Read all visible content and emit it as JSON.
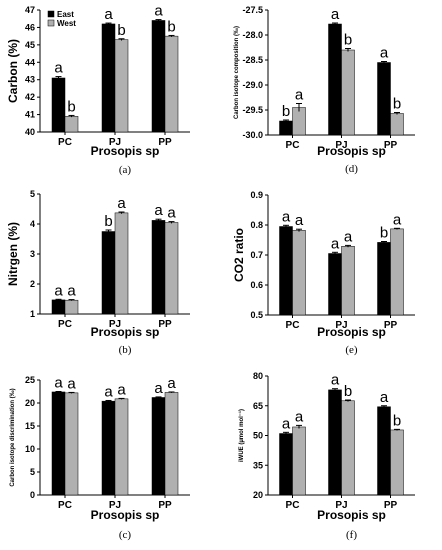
{
  "figure": {
    "legend": [
      "East",
      "West"
    ],
    "colors": {
      "East": "#000000",
      "West": "#b0b0b0"
    }
  },
  "chart_data": [
    {
      "type": "bar",
      "panel": "(a)",
      "ylabel": "Carbon (%)",
      "xlabel": "Prosopis sp",
      "categories": [
        "PC",
        "PJ",
        "PP"
      ],
      "series": [
        {
          "name": "East",
          "values": [
            43.1,
            46.2,
            46.4
          ],
          "errors": [
            0.08,
            0.05,
            0.05
          ],
          "letters": [
            "a",
            "a",
            "a"
          ]
        },
        {
          "name": "West",
          "values": [
            40.9,
            45.3,
            45.5
          ],
          "errors": [
            0.05,
            0.05,
            0.04
          ],
          "letters": [
            "b",
            "b",
            "b"
          ]
        }
      ],
      "ylim": [
        40,
        47
      ],
      "yticks": [
        40,
        41,
        42,
        43,
        44,
        45,
        46,
        47
      ],
      "legend_position": "top-left"
    },
    {
      "type": "bar",
      "panel": "(b)",
      "ylabel": "Nitrgen (%)",
      "xlabel": "Prosopis sp",
      "categories": [
        "PC",
        "PJ",
        "PP"
      ],
      "series": [
        {
          "name": "East",
          "values": [
            1.47,
            3.75,
            4.12
          ],
          "errors": [
            0.02,
            0.05,
            0.04
          ],
          "letters": [
            "a",
            "b",
            "a"
          ]
        },
        {
          "name": "West",
          "values": [
            1.46,
            4.37,
            4.05
          ],
          "errors": [
            0.02,
            0.03,
            0.03
          ],
          "letters": [
            "a",
            "a",
            "a"
          ]
        }
      ],
      "ylim": [
        1,
        5
      ],
      "yticks": [
        1,
        2,
        3,
        4,
        5
      ]
    },
    {
      "type": "bar",
      "panel": "(c)",
      "ylabel": "Carbon isotope discrimination (‰)",
      "xlabel": "Prosopis sp",
      "categories": [
        "PC",
        "PJ",
        "PP"
      ],
      "series": [
        {
          "name": "East",
          "values": [
            22.4,
            20.4,
            21.2
          ],
          "errors": [
            0.1,
            0.15,
            0.12
          ],
          "letters": [
            "a",
            "a",
            "a"
          ]
        },
        {
          "name": "West",
          "values": [
            22.2,
            20.9,
            22.3
          ],
          "errors": [
            0.1,
            0.1,
            0.1
          ],
          "letters": [
            "a",
            "a",
            "a"
          ]
        }
      ],
      "ylim": [
        0,
        25
      ],
      "yticks": [
        0,
        5,
        10,
        15,
        20,
        25
      ]
    },
    {
      "type": "bar",
      "panel": "(d)",
      "ylabel": "Carbon isotope composition (‰)",
      "xlabel": "Prosopis sp",
      "categories": [
        "PC",
        "PJ",
        "PP"
      ],
      "series": [
        {
          "name": "East",
          "values": [
            -29.72,
            -27.78,
            -28.55
          ],
          "errors": [
            0.02,
            0.02,
            0.02
          ],
          "letters": [
            "b",
            "a",
            "a"
          ]
        },
        {
          "name": "West",
          "values": [
            -29.45,
            -28.3,
            -29.57
          ],
          "errors": [
            0.08,
            0.03,
            0.02
          ],
          "letters": [
            "a",
            "b",
            "b"
          ]
        }
      ],
      "ylim": [
        -30.0,
        -27.5
      ],
      "yticks": [
        -30.0,
        -29.5,
        -29.0,
        -28.5,
        -28.0,
        -27.5
      ],
      "ytick_labels": [
        "-30.0",
        "-29.5",
        "-29.0",
        "-28.5",
        "-28.0",
        "-27.5"
      ]
    },
    {
      "type": "bar",
      "panel": "(e)",
      "ylabel": "CO2 ratio",
      "xlabel": "Prosopis sp",
      "categories": [
        "PC",
        "PJ",
        "PP"
      ],
      "series": [
        {
          "name": "East",
          "values": [
            0.795,
            0.705,
            0.742
          ],
          "errors": [
            0.004,
            0.004,
            0.003
          ],
          "letters": [
            "a",
            "a",
            "b"
          ]
        },
        {
          "name": "West",
          "values": [
            0.782,
            0.729,
            0.787
          ],
          "errors": [
            0.004,
            0.003,
            0.002
          ],
          "letters": [
            "a",
            "a",
            "a"
          ]
        }
      ],
      "ylim": [
        0.5,
        0.9
      ],
      "yticks": [
        0.5,
        0.6,
        0.7,
        0.8,
        0.9
      ]
    },
    {
      "type": "bar",
      "panel": "(f)",
      "ylabel": "iWUE (µmol mol⁻¹)",
      "xlabel": "Prosopis sp",
      "categories": [
        "PC",
        "PJ",
        "PP"
      ],
      "series": [
        {
          "name": "East",
          "values": [
            51,
            73,
            64.5
          ],
          "errors": [
            0.6,
            0.6,
            0.5
          ],
          "letters": [
            "a",
            "a",
            "a"
          ]
        },
        {
          "name": "West",
          "values": [
            54.3,
            67.5,
            52.8
          ],
          "errors": [
            0.8,
            0.4,
            0.3
          ],
          "letters": [
            "a",
            "b",
            "b"
          ]
        }
      ],
      "ylim": [
        20,
        80
      ],
      "yticks": [
        20,
        35,
        50,
        65,
        80
      ]
    }
  ]
}
